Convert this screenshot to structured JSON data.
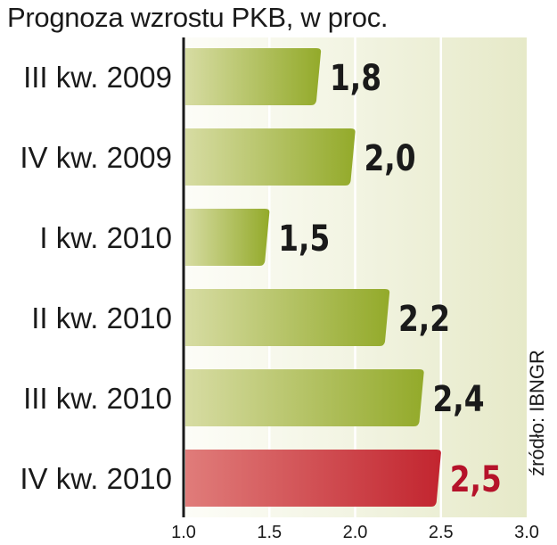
{
  "chart_data": {
    "type": "bar",
    "orientation": "horizontal",
    "title": "Prognoza wzrostu PKB, w proc.",
    "source": "źródło: IBNGR",
    "categories": [
      "III kw. 2009",
      "IV kw. 2009",
      "I kw. 2010",
      "II kw. 2010",
      "III kw. 2010",
      "IV kw. 2010"
    ],
    "values": [
      1.8,
      2.0,
      1.5,
      2.2,
      2.4,
      2.5
    ],
    "value_labels": [
      "1,8",
      "2,0",
      "1,5",
      "2,2",
      "2,4",
      "2,5"
    ],
    "highlight_index": 5,
    "xlim": [
      1.0,
      3.0
    ],
    "xticks": [
      "1.0",
      "1.5",
      "2.0",
      "2.5",
      "3.0"
    ],
    "grid": true,
    "colors": {
      "bar_light": "#d7dca3",
      "bar_dark": "#93aa2a",
      "highlight_light": "#e07c7a",
      "highlight_dark": "#c2252f",
      "highlight_label": "#b5122a",
      "background_light": "#fdfdf8",
      "background_mid": "#f2f4e2",
      "background_dark": "#e6e9c8",
      "text": "#1a1a1a"
    }
  }
}
